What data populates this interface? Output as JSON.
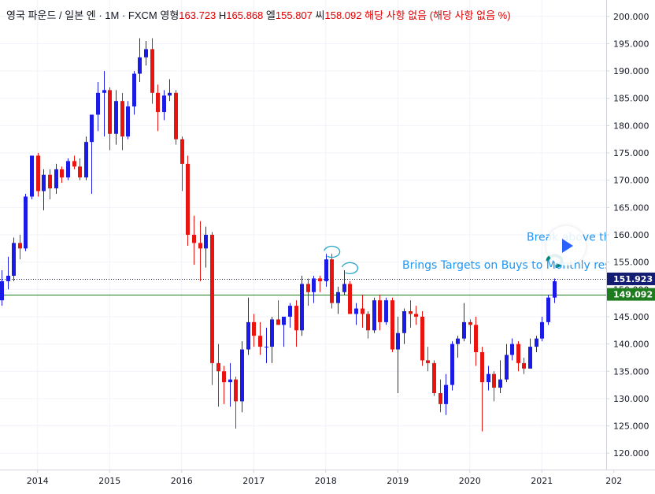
{
  "legend": {
    "symbol": "영국 파운드 / 일본 엔 · 1M · FXCM",
    "open_label": "영형",
    "open": "163.723",
    "high_label": "H",
    "high": "165.868",
    "low_label": "엘",
    "low": "155.807",
    "close_label": "씨",
    "close": "158.092",
    "na1": "해당 사항 없음",
    "na2": "(해당 사항 없음 %)"
  },
  "colors": {
    "up": "#1b1be6",
    "down": "#e8140f",
    "hline": "#1e7c1e",
    "annotation": "#2196f3",
    "marker": "#00897b"
  },
  "chart_data": {
    "type": "candlestick",
    "price_range": [
      117,
      203
    ],
    "y_ticks": [
      "200.000",
      "195.000",
      "190.000",
      "185.000",
      "180.000",
      "175.000",
      "170.000",
      "165.000",
      "160.000",
      "155.000",
      "150.000",
      "145.000",
      "140.000",
      "135.000",
      "130.000",
      "125.000",
      "120.000"
    ],
    "x_ticks": [
      "2014",
      "2015",
      "2016",
      "2017",
      "2018",
      "2019",
      "2020",
      "2021",
      "202"
    ],
    "price_labels": [
      {
        "value": 151.923,
        "text": "151.923",
        "style": "dotted"
      },
      {
        "value": 149.092,
        "text": "149.092",
        "style": "solid"
      }
    ],
    "annotations": [
      "Brings Targets on Buys to Monthly resis",
      "Break above th"
    ],
    "candles": [
      {
        "t": "2013-07",
        "o": 148.0,
        "h": 153.5,
        "l": 147.0,
        "c": 151.5
      },
      {
        "t": "2013-08",
        "o": 151.5,
        "h": 156.0,
        "l": 150.0,
        "c": 152.5
      },
      {
        "t": "2013-09",
        "o": 152.5,
        "h": 159.5,
        "l": 151.5,
        "c": 158.5
      },
      {
        "t": "2013-10",
        "o": 158.5,
        "h": 160.0,
        "l": 155.5,
        "c": 157.5
      },
      {
        "t": "2013-11",
        "o": 157.5,
        "h": 167.5,
        "l": 157.0,
        "c": 167.0
      },
      {
        "t": "2013-12",
        "o": 167.0,
        "h": 174.5,
        "l": 166.5,
        "c": 174.5
      },
      {
        "t": "2014-01",
        "o": 174.5,
        "h": 175.0,
        "l": 167.0,
        "c": 168.0
      },
      {
        "t": "2014-02",
        "o": 168.0,
        "h": 172.0,
        "l": 164.5,
        "c": 171.0
      },
      {
        "t": "2014-03",
        "o": 171.0,
        "h": 172.0,
        "l": 166.5,
        "c": 168.5
      },
      {
        "t": "2014-04",
        "o": 168.5,
        "h": 173.0,
        "l": 167.5,
        "c": 172.0
      },
      {
        "t": "2014-05",
        "o": 172.0,
        "h": 172.5,
        "l": 169.5,
        "c": 170.5
      },
      {
        "t": "2014-06",
        "o": 170.5,
        "h": 174.0,
        "l": 170.0,
        "c": 173.5
      },
      {
        "t": "2014-07",
        "o": 173.5,
        "h": 174.5,
        "l": 172.0,
        "c": 172.5
      },
      {
        "t": "2014-08",
        "o": 172.5,
        "h": 174.0,
        "l": 170.0,
        "c": 170.5
      },
      {
        "t": "2014-09",
        "o": 170.5,
        "h": 178.0,
        "l": 170.0,
        "c": 177.0
      },
      {
        "t": "2014-10",
        "o": 177.0,
        "h": 182.0,
        "l": 167.5,
        "c": 182.0
      },
      {
        "t": "2014-11",
        "o": 182.0,
        "h": 188.0,
        "l": 179.0,
        "c": 186.0
      },
      {
        "t": "2014-12",
        "o": 186.0,
        "h": 190.0,
        "l": 178.0,
        "c": 186.5
      },
      {
        "t": "2015-01",
        "o": 186.5,
        "h": 187.0,
        "l": 175.5,
        "c": 178.5
      },
      {
        "t": "2015-02",
        "o": 178.5,
        "h": 186.5,
        "l": 176.5,
        "c": 184.5
      },
      {
        "t": "2015-03",
        "o": 184.5,
        "h": 186.0,
        "l": 175.5,
        "c": 178.0
      },
      {
        "t": "2015-04",
        "o": 178.0,
        "h": 184.5,
        "l": 177.5,
        "c": 183.5
      },
      {
        "t": "2015-05",
        "o": 183.5,
        "h": 190.0,
        "l": 182.0,
        "c": 189.5
      },
      {
        "t": "2015-06",
        "o": 189.5,
        "h": 196.0,
        "l": 188.0,
        "c": 192.5
      },
      {
        "t": "2015-07",
        "o": 192.5,
        "h": 195.5,
        "l": 191.0,
        "c": 194.0
      },
      {
        "t": "2015-08",
        "o": 194.0,
        "h": 196.0,
        "l": 184.0,
        "c": 186.0
      },
      {
        "t": "2015-09",
        "o": 186.0,
        "h": 187.5,
        "l": 179.0,
        "c": 182.5
      },
      {
        "t": "2015-10",
        "o": 182.5,
        "h": 186.5,
        "l": 181.0,
        "c": 185.5
      },
      {
        "t": "2015-11",
        "o": 185.5,
        "h": 188.5,
        "l": 184.5,
        "c": 186.0
      },
      {
        "t": "2015-12",
        "o": 186.0,
        "h": 186.5,
        "l": 176.5,
        "c": 177.5
      },
      {
        "t": "2016-01",
        "o": 177.5,
        "h": 178.0,
        "l": 168.0,
        "c": 173.0
      },
      {
        "t": "2016-02",
        "o": 173.0,
        "h": 174.5,
        "l": 158.0,
        "c": 160.0
      },
      {
        "t": "2016-03",
        "o": 160.0,
        "h": 163.5,
        "l": 154.5,
        "c": 158.5
      },
      {
        "t": "2016-04",
        "o": 158.5,
        "h": 162.5,
        "l": 151.5,
        "c": 157.5
      },
      {
        "t": "2016-05",
        "o": 157.5,
        "h": 161.5,
        "l": 154.0,
        "c": 160.0
      },
      {
        "t": "2016-06",
        "o": 160.0,
        "h": 160.5,
        "l": 132.5,
        "c": 136.5
      },
      {
        "t": "2016-07",
        "o": 136.5,
        "h": 140.0,
        "l": 128.5,
        "c": 135.0
      },
      {
        "t": "2016-08",
        "o": 135.0,
        "h": 136.0,
        "l": 129.0,
        "c": 133.0
      },
      {
        "t": "2016-09",
        "o": 133.0,
        "h": 136.5,
        "l": 128.5,
        "c": 133.5
      },
      {
        "t": "2016-10",
        "o": 133.5,
        "h": 134.0,
        "l": 124.5,
        "c": 129.5
      },
      {
        "t": "2016-11",
        "o": 129.5,
        "h": 140.5,
        "l": 127.5,
        "c": 139.0
      },
      {
        "t": "2016-12",
        "o": 139.0,
        "h": 148.5,
        "l": 138.0,
        "c": 144.0
      },
      {
        "t": "2017-01",
        "o": 144.0,
        "h": 145.5,
        "l": 139.5,
        "c": 141.5
      },
      {
        "t": "2017-02",
        "o": 141.5,
        "h": 144.0,
        "l": 138.0,
        "c": 139.5
      },
      {
        "t": "2017-03",
        "o": 139.5,
        "h": 143.0,
        "l": 136.5,
        "c": 139.5
      },
      {
        "t": "2017-04",
        "o": 139.5,
        "h": 145.0,
        "l": 136.5,
        "c": 144.5
      },
      {
        "t": "2017-05",
        "o": 144.5,
        "h": 148.0,
        "l": 143.5,
        "c": 143.5
      },
      {
        "t": "2017-06",
        "o": 143.5,
        "h": 145.0,
        "l": 139.5,
        "c": 145.0
      },
      {
        "t": "2017-07",
        "o": 145.0,
        "h": 147.5,
        "l": 143.0,
        "c": 147.0
      },
      {
        "t": "2017-08",
        "o": 147.0,
        "h": 148.0,
        "l": 139.5,
        "c": 142.5
      },
      {
        "t": "2017-09",
        "o": 142.5,
        "h": 152.5,
        "l": 141.5,
        "c": 151.0
      },
      {
        "t": "2017-10",
        "o": 151.0,
        "h": 152.0,
        "l": 147.0,
        "c": 149.5
      },
      {
        "t": "2017-11",
        "o": 149.5,
        "h": 152.5,
        "l": 147.5,
        "c": 152.0
      },
      {
        "t": "2017-12",
        "o": 152.0,
        "h": 152.5,
        "l": 149.5,
        "c": 151.5
      },
      {
        "t": "2018-01",
        "o": 151.5,
        "h": 156.5,
        "l": 150.5,
        "c": 155.5
      },
      {
        "t": "2018-02",
        "o": 155.5,
        "h": 156.5,
        "l": 146.5,
        "c": 147.5
      },
      {
        "t": "2018-03",
        "o": 147.5,
        "h": 150.5,
        "l": 145.5,
        "c": 149.5
      },
      {
        "t": "2018-04",
        "o": 149.5,
        "h": 153.5,
        "l": 149.0,
        "c": 151.0
      },
      {
        "t": "2018-05",
        "o": 151.0,
        "h": 151.5,
        "l": 145.5,
        "c": 145.5
      },
      {
        "t": "2018-06",
        "o": 145.5,
        "h": 147.5,
        "l": 143.5,
        "c": 146.5
      },
      {
        "t": "2018-07",
        "o": 146.5,
        "h": 149.0,
        "l": 143.0,
        "c": 145.5
      },
      {
        "t": "2018-08",
        "o": 145.5,
        "h": 146.0,
        "l": 141.0,
        "c": 142.5
      },
      {
        "t": "2018-09",
        "o": 142.5,
        "h": 148.5,
        "l": 142.0,
        "c": 148.0
      },
      {
        "t": "2018-10",
        "o": 148.0,
        "h": 149.0,
        "l": 142.5,
        "c": 144.0
      },
      {
        "t": "2018-11",
        "o": 144.0,
        "h": 148.5,
        "l": 143.5,
        "c": 148.0
      },
      {
        "t": "2018-12",
        "o": 148.0,
        "h": 148.5,
        "l": 138.5,
        "c": 139.0
      },
      {
        "t": "2019-01",
        "o": 139.0,
        "h": 145.0,
        "l": 131.0,
        "c": 142.0
      },
      {
        "t": "2019-02",
        "o": 142.0,
        "h": 146.5,
        "l": 140.0,
        "c": 146.0
      },
      {
        "t": "2019-03",
        "o": 146.0,
        "h": 148.0,
        "l": 143.0,
        "c": 145.5
      },
      {
        "t": "2019-04",
        "o": 145.5,
        "h": 147.0,
        "l": 143.5,
        "c": 145.0
      },
      {
        "t": "2019-05",
        "o": 145.0,
        "h": 146.0,
        "l": 136.0,
        "c": 137.0
      },
      {
        "t": "2019-06",
        "o": 137.0,
        "h": 139.5,
        "l": 135.0,
        "c": 136.5
      },
      {
        "t": "2019-07",
        "o": 136.5,
        "h": 137.0,
        "l": 130.5,
        "c": 131.0
      },
      {
        "t": "2019-08",
        "o": 131.0,
        "h": 133.5,
        "l": 127.5,
        "c": 129.0
      },
      {
        "t": "2019-09",
        "o": 129.0,
        "h": 134.5,
        "l": 127.0,
        "c": 132.5
      },
      {
        "t": "2019-10",
        "o": 132.5,
        "h": 140.5,
        "l": 131.5,
        "c": 140.0
      },
      {
        "t": "2019-11",
        "o": 140.0,
        "h": 141.5,
        "l": 137.5,
        "c": 141.0
      },
      {
        "t": "2019-12",
        "o": 141.0,
        "h": 147.5,
        "l": 140.5,
        "c": 144.0
      },
      {
        "t": "2020-01",
        "o": 144.0,
        "h": 144.5,
        "l": 140.0,
        "c": 143.5
      },
      {
        "t": "2020-02",
        "o": 143.5,
        "h": 145.0,
        "l": 136.0,
        "c": 138.5
      },
      {
        "t": "2020-03",
        "o": 138.5,
        "h": 139.5,
        "l": 124.0,
        "c": 133.0
      },
      {
        "t": "2020-04",
        "o": 133.0,
        "h": 136.0,
        "l": 131.5,
        "c": 134.5
      },
      {
        "t": "2020-05",
        "o": 134.5,
        "h": 135.0,
        "l": 129.5,
        "c": 132.0
      },
      {
        "t": "2020-06",
        "o": 132.0,
        "h": 137.0,
        "l": 131.0,
        "c": 133.5
      },
      {
        "t": "2020-07",
        "o": 133.5,
        "h": 140.0,
        "l": 133.0,
        "c": 138.0
      },
      {
        "t": "2020-08",
        "o": 138.0,
        "h": 141.0,
        "l": 137.0,
        "c": 140.0
      },
      {
        "t": "2020-09",
        "o": 140.0,
        "h": 140.5,
        "l": 135.0,
        "c": 136.5
      },
      {
        "t": "2020-10",
        "o": 136.5,
        "h": 137.5,
        "l": 134.5,
        "c": 135.5
      },
      {
        "t": "2020-11",
        "o": 135.5,
        "h": 141.0,
        "l": 135.5,
        "c": 139.5
      },
      {
        "t": "2020-12",
        "o": 139.5,
        "h": 141.5,
        "l": 138.5,
        "c": 141.0
      },
      {
        "t": "2021-01",
        "o": 141.0,
        "h": 145.0,
        "l": 140.5,
        "c": 144.0
      },
      {
        "t": "2021-02",
        "o": 144.0,
        "h": 149.0,
        "l": 143.5,
        "c": 148.5
      },
      {
        "t": "2021-03",
        "o": 148.5,
        "h": 152.0,
        "l": 147.5,
        "c": 151.5
      }
    ]
  }
}
